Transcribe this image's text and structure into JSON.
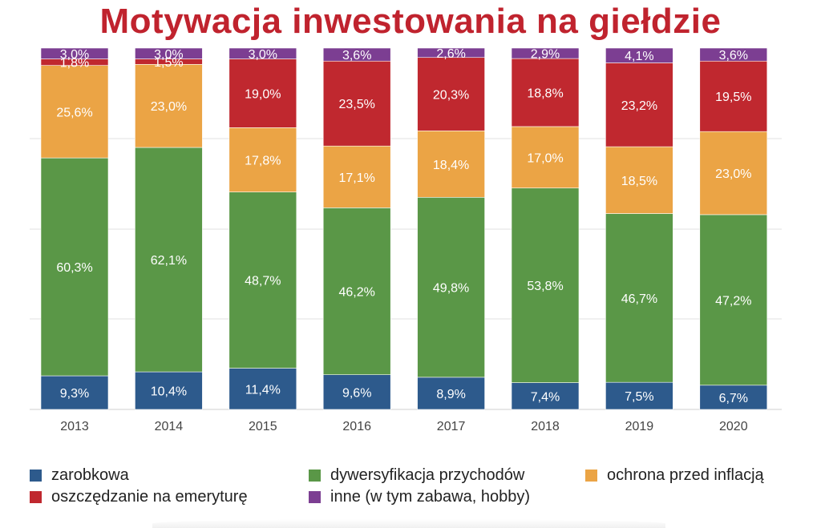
{
  "title": "Motywacja inwestowania na giełdzie",
  "colors": {
    "zarobkowa": "#2d5a8c",
    "dywersyfikacja": "#5a9747",
    "ochrona": "#eba445",
    "emerytura": "#c0282f",
    "inne": "#7c3e92",
    "title": "#c0232e"
  },
  "chart_data": {
    "type": "bar",
    "stacked": true,
    "title": "Motywacja inwestowania na giełdzie",
    "categories": [
      "2013",
      "2014",
      "2015",
      "2016",
      "2017",
      "2018",
      "2019",
      "2020"
    ],
    "ylim": [
      0,
      100
    ],
    "grid": true,
    "legend_position": "bottom",
    "series": [
      {
        "key": "zarobkowa",
        "name": "zarobkowa",
        "values": [
          9.3,
          10.4,
          11.4,
          9.6,
          8.9,
          7.4,
          7.5,
          6.7
        ],
        "labels": [
          "9,3%",
          "10,4%",
          "11,4%",
          "9,6%",
          "8,9%",
          "7,4%",
          "7,5%",
          "6,7%"
        ]
      },
      {
        "key": "dywersyfikacja",
        "name": "dywersyfikacja przychodów",
        "values": [
          60.3,
          62.1,
          48.7,
          46.2,
          49.8,
          53.8,
          46.7,
          47.2
        ],
        "labels": [
          "60,3%",
          "62,1%",
          "48,7%",
          "46,2%",
          "49,8%",
          "53,8%",
          "46,7%",
          "47,2%"
        ]
      },
      {
        "key": "ochrona",
        "name": "ochrona przed inflacją",
        "values": [
          25.6,
          23.0,
          17.8,
          17.1,
          18.4,
          17.0,
          18.5,
          23.0
        ],
        "labels": [
          "25,6%",
          "23,0%",
          "17,8%",
          "17,1%",
          "18,4%",
          "17,0%",
          "18,5%",
          "23,0%"
        ]
      },
      {
        "key": "emerytura",
        "name": "oszczędzanie na emeryturę",
        "values": [
          1.8,
          1.5,
          19.0,
          23.5,
          20.3,
          18.8,
          23.2,
          19.5
        ],
        "labels": [
          "1,8%",
          "1,5%",
          "19,0%",
          "23,5%",
          "20,3%",
          "18,8%",
          "23,2%",
          "19,5%"
        ]
      },
      {
        "key": "inne",
        "name": "inne (w tym zabawa, hobby)",
        "values": [
          3.0,
          3.0,
          3.0,
          3.6,
          2.6,
          2.9,
          4.1,
          3.6
        ],
        "labels": [
          "3,0%",
          "3,0%",
          "3,0%",
          "3,6%",
          "2,6%",
          "2,9%",
          "4,1%",
          "3,6%"
        ]
      }
    ]
  },
  "legend": [
    {
      "key": "zarobkowa",
      "label": "zarobkowa"
    },
    {
      "key": "dywersyfikacja",
      "label": "dywersyfikacja przychodów"
    },
    {
      "key": "ochrona",
      "label": "ochrona przed inflacją"
    },
    {
      "key": "emerytura",
      "label": "oszczędzanie na emeryturę"
    },
    {
      "key": "inne",
      "label": "inne (w tym zabawa, hobby)"
    }
  ]
}
